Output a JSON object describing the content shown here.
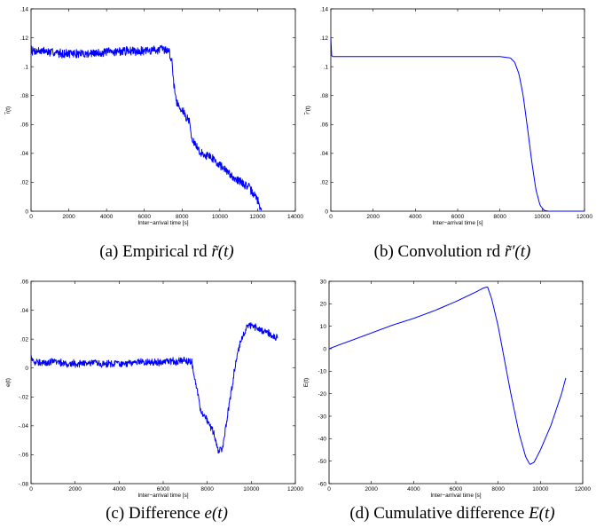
{
  "colors": {
    "line": "#0000ff",
    "axes": "#000000",
    "background": "#ffffff"
  },
  "captions": [
    {
      "text": "(a) Empirical rd ",
      "math": "r̃(t)"
    },
    {
      "text": "(b) Convolution rd ",
      "math": "r̃′(t)"
    },
    {
      "text": "(c) Difference ",
      "math": "e(t)"
    },
    {
      "text": "(d) Cumulative difference ",
      "math": "E(t)"
    }
  ],
  "chart_data": [
    {
      "type": "line",
      "title": "",
      "xlabel": "Inter−arrival time [s]",
      "ylabel": "r̃(t)",
      "xlim": [
        0,
        14000
      ],
      "ylim": [
        0,
        0.14
      ],
      "xticks": [
        0,
        2000,
        4000,
        6000,
        8000,
        10000,
        12000,
        14000
      ],
      "yticks": [
        0,
        0.02,
        0.04,
        0.06,
        0.08,
        0.1,
        0.12,
        0.14
      ],
      "noise": 0.0035,
      "series": [
        {
          "x": [
            0,
            50,
            500,
            1000,
            2000,
            3000,
            4000,
            5000,
            6000,
            7000,
            7300,
            7450,
            7550,
            7700,
            8000,
            8400,
            8500,
            9000,
            9500,
            10000,
            10500,
            11000,
            11500,
            12000,
            12100,
            12200
          ],
          "y": [
            0.115,
            0.111,
            0.111,
            0.11,
            0.109,
            0.109,
            0.11,
            0.111,
            0.111,
            0.112,
            0.111,
            0.105,
            0.09,
            0.076,
            0.07,
            0.062,
            0.05,
            0.04,
            0.038,
            0.032,
            0.026,
            0.021,
            0.017,
            0.008,
            0.004,
            0.0
          ]
        }
      ]
    },
    {
      "type": "line",
      "title": "",
      "xlabel": "Inter−arrival time [s]",
      "ylabel": "r̃′(t)",
      "xlim": [
        0,
        12000
      ],
      "ylim": [
        0,
        0.14
      ],
      "xticks": [
        0,
        2000,
        4000,
        6000,
        8000,
        10000,
        12000
      ],
      "yticks": [
        0,
        0.02,
        0.04,
        0.06,
        0.08,
        0.1,
        0.12,
        0.14
      ],
      "noise": 0,
      "series": [
        {
          "x": [
            0,
            30,
            80,
            1000,
            3000,
            5000,
            7000,
            8000,
            8500,
            8700,
            8900,
            9100,
            9300,
            9500,
            9700,
            9900,
            10100,
            10300,
            12000
          ],
          "y": [
            0.12,
            0.108,
            0.107,
            0.107,
            0.107,
            0.107,
            0.107,
            0.107,
            0.106,
            0.103,
            0.095,
            0.08,
            0.058,
            0.035,
            0.015,
            0.004,
            0.0005,
            0.0,
            0.0
          ]
        }
      ]
    },
    {
      "type": "line",
      "title": "",
      "xlabel": "Inter−arrival time [s]",
      "ylabel": "e(t)",
      "xlim": [
        0,
        12000
      ],
      "ylim": [
        -0.08,
        0.06
      ],
      "xticks": [
        0,
        2000,
        4000,
        6000,
        8000,
        10000,
        12000
      ],
      "yticks": [
        -0.08,
        -0.06,
        -0.04,
        -0.02,
        0,
        0.02,
        0.04,
        0.06
      ],
      "noise": 0.003,
      "series": [
        {
          "x": [
            0,
            50,
            1000,
            2000,
            3000,
            4000,
            5000,
            6000,
            7000,
            7300,
            7500,
            7700,
            8000,
            8300,
            8500,
            8700,
            8900,
            9200,
            9500,
            9800,
            10000,
            10500,
            11000,
            11200
          ],
          "y": [
            0.01,
            0.004,
            0.004,
            0.003,
            0.003,
            0.003,
            0.004,
            0.004,
            0.005,
            0.004,
            -0.012,
            -0.03,
            -0.036,
            -0.045,
            -0.058,
            -0.056,
            -0.035,
            -0.005,
            0.018,
            0.028,
            0.03,
            0.026,
            0.022,
            0.02
          ]
        }
      ]
    },
    {
      "type": "line",
      "title": "",
      "xlabel": "Inter−arrival time [s]",
      "ylabel": "E(t)",
      "xlim": [
        0,
        12000
      ],
      "ylim": [
        -60,
        30
      ],
      "xticks": [
        0,
        2000,
        4000,
        6000,
        8000,
        10000,
        12000
      ],
      "yticks": [
        -60,
        -50,
        -40,
        -30,
        -20,
        -10,
        0,
        10,
        20,
        30
      ],
      "noise": 0,
      "series": [
        {
          "x": [
            0,
            500,
            1000,
            2000,
            3000,
            4000,
            5000,
            6000,
            7000,
            7300,
            7500,
            7700,
            8000,
            8300,
            8600,
            9000,
            9300,
            9500,
            9700,
            10000,
            10500,
            11000,
            11200
          ],
          "y": [
            0,
            1.8,
            3.5,
            7.0,
            10.5,
            13.5,
            17.0,
            21.0,
            25.5,
            27.0,
            27.5,
            22.0,
            10.0,
            -5.0,
            -20.0,
            -38.0,
            -48.0,
            -51.5,
            -50.5,
            -45.0,
            -34.0,
            -20.0,
            -13.0
          ]
        }
      ]
    }
  ]
}
